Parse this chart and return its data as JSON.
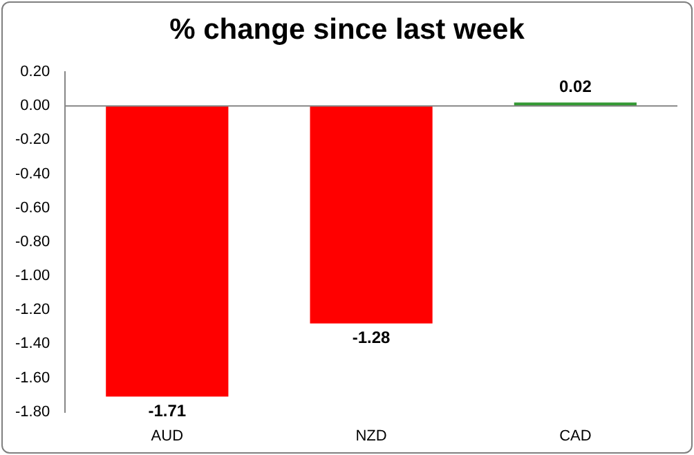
{
  "chart_data": {
    "type": "bar",
    "title": "% change since last week",
    "categories": [
      "AUD",
      "NZD",
      "CAD"
    ],
    "values": [
      -1.71,
      -1.28,
      0.02
    ],
    "colors": [
      "#ff0000",
      "#ff0000",
      "#339933"
    ],
    "ylim": [
      -1.8,
      0.2
    ],
    "yticks": [
      {
        "value": -1.8,
        "label": "-1.80"
      },
      {
        "value": -1.6,
        "label": "-1.60"
      },
      {
        "value": -1.4,
        "label": "-1.40"
      },
      {
        "value": -1.2,
        "label": "-1.20"
      },
      {
        "value": -1,
        "label": "-1.00"
      },
      {
        "value": -0.8,
        "label": "-0.80"
      },
      {
        "value": -0.6,
        "label": "-0.60"
      },
      {
        "value": -0.4,
        "label": "-0.40"
      },
      {
        "value": -0.2,
        "label": "-0.20"
      },
      {
        "value": 0,
        "label": "0.00"
      },
      {
        "value": 0.2,
        "label": "0.20"
      }
    ],
    "ref_lines": [
      {
        "axis": "y",
        "value": 0,
        "color": "#868686"
      }
    ],
    "data_labels": true,
    "legend": false
  }
}
